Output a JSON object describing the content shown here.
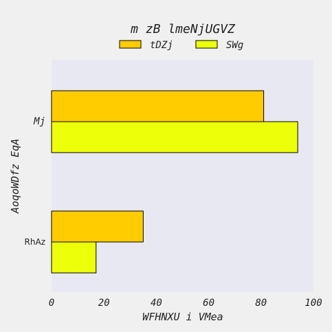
{
  "chart_data": {
    "type": "bar",
    "orientation": "horizontal",
    "title": "m zB lmeNjUGVZ",
    "xlabel": "WFHNXU i VMea",
    "ylabel": "AoqoWDfz EqA",
    "categories": [
      "Mj",
      "RhAz"
    ],
    "xlim": [
      0,
      100
    ],
    "xticks": [
      0,
      20,
      40,
      60,
      80,
      100
    ],
    "legend_position": "top-center",
    "grid": false,
    "series": [
      {
        "name": "tDZj",
        "values": [
          81,
          35
        ],
        "color": "#ffcc00"
      },
      {
        "name": "SWg",
        "values": [
          94,
          17
        ],
        "color": "#eeff0a"
      }
    ]
  }
}
